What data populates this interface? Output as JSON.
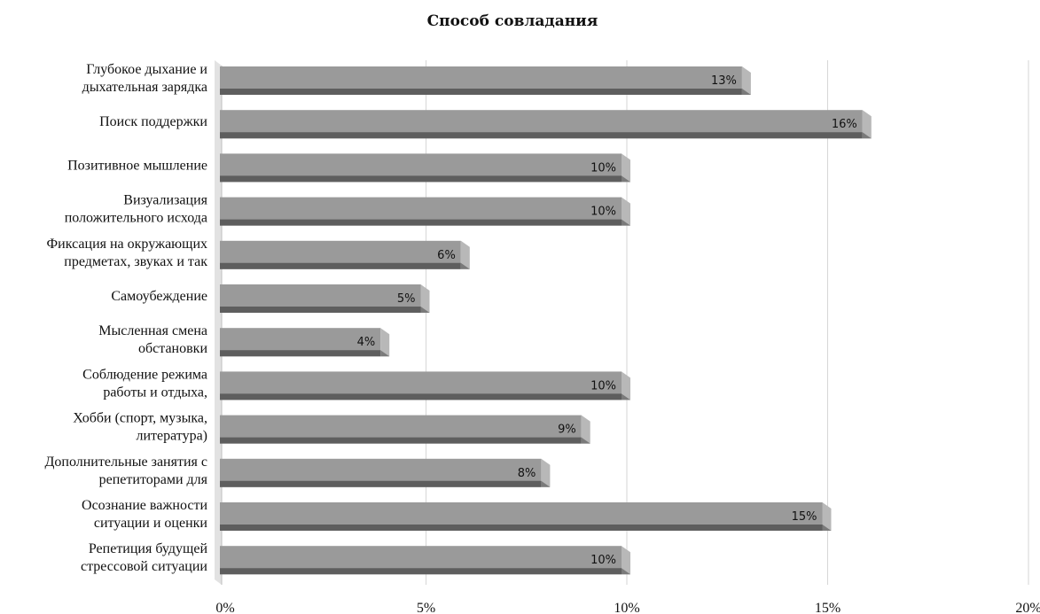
{
  "chart_data": {
    "type": "bar",
    "orientation": "horizontal",
    "title": "Способ совладания",
    "xlim": [
      0,
      20
    ],
    "x_ticks": [
      "0%",
      "5%",
      "10%",
      "15%",
      "20%"
    ],
    "grid": "vertical",
    "categories": [
      [
        "Глубокое дыхание и",
        "дыхательная зарядка"
      ],
      [
        "Поиск поддержки"
      ],
      [
        "Позитивное мышление"
      ],
      [
        "Визуализация",
        "положительного исхода"
      ],
      [
        "Фиксация на окружающих",
        "предметах, звуках и так"
      ],
      [
        "Самоубеждение"
      ],
      [
        "Мысленная смена",
        "обстановки"
      ],
      [
        "Соблюдение режима",
        "работы и отдыха,"
      ],
      [
        "Хобби (спорт, музыка,",
        "литература)"
      ],
      [
        "Дополнительные занятия с",
        "репетиторами для"
      ],
      [
        "Осознание важности",
        "ситуации и оценки"
      ],
      [
        "Репетиция будущей",
        "стрессовой ситуации"
      ]
    ],
    "values": [
      13,
      16,
      10,
      10,
      6,
      5,
      4,
      10,
      9,
      8,
      15,
      10
    ],
    "data_labels": [
      "13%",
      "16%",
      "10%",
      "10%",
      "6%",
      "5%",
      "4%",
      "10%",
      "9%",
      "8%",
      "15%",
      "10%"
    ],
    "colors": {
      "bar_front": "#9a9a9a",
      "bar_bottom": "#5e5e5e",
      "bar_side": "#b8b8b8",
      "grid": "#d6d6d6",
      "wall": "#e2e2e2"
    }
  }
}
